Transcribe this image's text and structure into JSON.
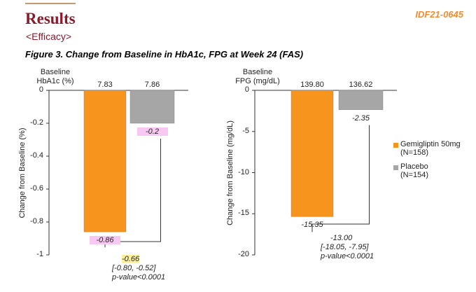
{
  "header": {
    "title": "Results",
    "subtitle": "<Efficacy>",
    "code": "IDF21-0645",
    "figure_caption": "Figure 3. Change from Baseline in HbA1c, FPG at Week 24 (FAS)"
  },
  "colors": {
    "gemigliptin": "#f7941d",
    "placebo": "#a6a6a6",
    "title": "#8b1a2b",
    "code": "#f28b2c"
  },
  "legend": [
    {
      "name": "Gemigliptin 50mg",
      "n": "(N=158)"
    },
    {
      "name": "Placebo",
      "n": "(N=154)"
    }
  ],
  "chart_data": [
    {
      "type": "bar",
      "baseline_label_line1": "Baseline",
      "baseline_label_line2": "HbA1c (%)",
      "categories": [
        "Gemigliptin 50mg",
        "Placebo"
      ],
      "baseline_values": [
        "7.83",
        "7.86"
      ],
      "values": [
        -0.86,
        -0.2
      ],
      "value_labels": [
        "-0.86",
        "-0.2"
      ],
      "ylabel": "Change from Baseline (%)",
      "ylim": [
        -1,
        0
      ],
      "yticks": [
        0,
        -0.2,
        -0.4,
        -0.6,
        -0.8,
        -1
      ],
      "ytick_labels": [
        "0",
        "-0.2",
        "-0.4",
        "-0.6",
        "-0.8",
        "-1"
      ],
      "difference": {
        "value": "-0.66",
        "ci": "[-0.80, -0.52]",
        "p": "p-value<0.0001"
      }
    },
    {
      "type": "bar",
      "baseline_label_line1": "Baseline",
      "baseline_label_line2": "FPG (mg/dL)",
      "categories": [
        "Gemigliptin 50mg",
        "Placebo"
      ],
      "baseline_values": [
        "139.80",
        "136.62"
      ],
      "values": [
        -15.35,
        -2.35
      ],
      "value_labels": [
        "-15.35",
        "-2.35"
      ],
      "ylabel": "Change from Baseline (mg/dL)",
      "ylim": [
        -20,
        0
      ],
      "yticks": [
        0,
        -5,
        -10,
        -15,
        -20
      ],
      "ytick_labels": [
        "0",
        "-5",
        "-10",
        "-15",
        "-20"
      ],
      "difference": {
        "value": "-13.00",
        "ci": "[-18.05, -7.95]",
        "p": "p-value<0.0001"
      }
    }
  ]
}
